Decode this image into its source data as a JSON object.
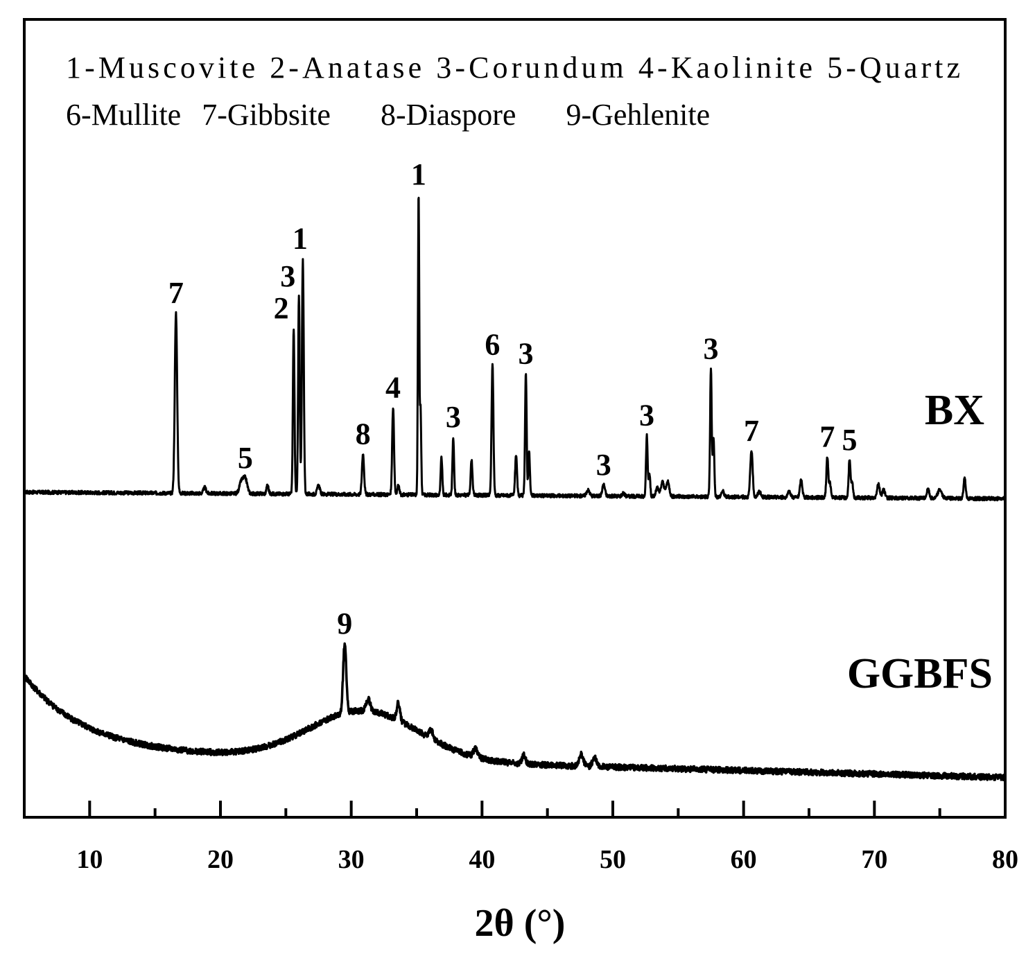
{
  "chart_data": {
    "type": "line",
    "title": "",
    "xlabel": "2θ (°)",
    "ylabel": "",
    "xlim": [
      5,
      80
    ],
    "x_ticks": [
      10,
      20,
      30,
      40,
      50,
      60,
      70,
      80
    ],
    "x_minor_ticks": [
      15,
      25,
      35,
      45,
      55,
      65,
      75
    ],
    "grid": false,
    "legend_placement": "top",
    "legend_lines": [
      [
        "1-Muscovite",
        "2-Anatase",
        "3-Corundum",
        "4-Kaolinite",
        "5-Quartz"
      ],
      [
        "6-Mullite",
        "7-Gibbsite",
        "8-Diaspore",
        "9-Gehlenite"
      ]
    ],
    "series": [
      {
        "name": "BX",
        "baseline": 10,
        "baseline_slope": -0.03,
        "noise": 0.6,
        "peaks": [
          {
            "x": 16.6,
            "h": 62,
            "w": 0.09,
            "label": "7"
          },
          {
            "x": 18.8,
            "h": 2,
            "w": 0.1
          },
          {
            "x": 21.6,
            "h": 4,
            "w": 0.15
          },
          {
            "x": 21.9,
            "h": 5,
            "w": 0.15,
            "label": "5"
          },
          {
            "x": 23.6,
            "h": 3,
            "w": 0.08
          },
          {
            "x": 25.6,
            "h": 57,
            "w": 0.06,
            "label": "2"
          },
          {
            "x": 26.0,
            "h": 68,
            "w": 0.06,
            "label": "3"
          },
          {
            "x": 26.3,
            "h": 81,
            "w": 0.07,
            "label": "1"
          },
          {
            "x": 27.5,
            "h": 3,
            "w": 0.1
          },
          {
            "x": 30.9,
            "h": 14,
            "w": 0.08,
            "label": "8"
          },
          {
            "x": 33.2,
            "h": 30,
            "w": 0.07,
            "label": "4"
          },
          {
            "x": 33.6,
            "h": 3,
            "w": 0.08
          },
          {
            "x": 35.15,
            "h": 103,
            "w": 0.05,
            "label": "1"
          },
          {
            "x": 35.3,
            "h": 30,
            "w": 0.05
          },
          {
            "x": 36.9,
            "h": 13,
            "w": 0.06
          },
          {
            "x": 37.8,
            "h": 20,
            "w": 0.06,
            "label": "3"
          },
          {
            "x": 39.2,
            "h": 12,
            "w": 0.07
          },
          {
            "x": 40.8,
            "h": 45,
            "w": 0.07,
            "label": "6"
          },
          {
            "x": 42.6,
            "h": 14,
            "w": 0.07
          },
          {
            "x": 43.35,
            "h": 42,
            "w": 0.06,
            "label": "3"
          },
          {
            "x": 43.6,
            "h": 15,
            "w": 0.06
          },
          {
            "x": 48.1,
            "h": 2,
            "w": 0.12
          },
          {
            "x": 49.3,
            "h": 4,
            "w": 0.1,
            "label": "3"
          },
          {
            "x": 50.8,
            "h": 1,
            "w": 0.1
          },
          {
            "x": 52.6,
            "h": 21,
            "w": 0.06,
            "label": "3"
          },
          {
            "x": 52.8,
            "h": 8,
            "w": 0.06
          },
          {
            "x": 53.4,
            "h": 3,
            "w": 0.1
          },
          {
            "x": 53.8,
            "h": 5,
            "w": 0.12
          },
          {
            "x": 54.2,
            "h": 5,
            "w": 0.12
          },
          {
            "x": 57.5,
            "h": 44,
            "w": 0.06,
            "label": "3"
          },
          {
            "x": 57.7,
            "h": 20,
            "w": 0.06
          },
          {
            "x": 58.4,
            "h": 2,
            "w": 0.1
          },
          {
            "x": 60.6,
            "h": 16,
            "w": 0.09,
            "label": "7"
          },
          {
            "x": 61.2,
            "h": 2,
            "w": 0.1
          },
          {
            "x": 63.5,
            "h": 2,
            "w": 0.1
          },
          {
            "x": 64.4,
            "h": 6,
            "w": 0.09
          },
          {
            "x": 66.4,
            "h": 14,
            "w": 0.07,
            "label": "7"
          },
          {
            "x": 66.6,
            "h": 5,
            "w": 0.07
          },
          {
            "x": 68.1,
            "h": 13,
            "w": 0.07,
            "label": "5"
          },
          {
            "x": 68.3,
            "h": 5,
            "w": 0.07
          },
          {
            "x": 70.3,
            "h": 5,
            "w": 0.1
          },
          {
            "x": 70.7,
            "h": 3,
            "w": 0.1
          },
          {
            "x": 74.1,
            "h": 3,
            "w": 0.1
          },
          {
            "x": 75.0,
            "h": 3,
            "w": 0.15
          },
          {
            "x": 76.9,
            "h": 7,
            "w": 0.08
          }
        ]
      },
      {
        "name": "GGBFS",
        "baseline": -82,
        "noise": 1.0,
        "decay": {
          "amp": 26,
          "tau": 4.5
        },
        "hump": {
          "x": 31,
          "h": 17,
          "w": 4.2
        },
        "slope": -0.12,
        "peaks": [
          {
            "x": 29.5,
            "h": 24,
            "w": 0.12,
            "label": "9"
          },
          {
            "x": 31.3,
            "h": 4,
            "w": 0.15
          },
          {
            "x": 33.6,
            "h": 6,
            "w": 0.12
          },
          {
            "x": 36.1,
            "h": 3,
            "w": 0.15
          },
          {
            "x": 39.5,
            "h": 3,
            "w": 0.15
          },
          {
            "x": 43.2,
            "h": 3,
            "w": 0.12
          },
          {
            "x": 47.6,
            "h": 4,
            "w": 0.15
          },
          {
            "x": 48.6,
            "h": 3,
            "w": 0.15
          }
        ]
      }
    ]
  }
}
